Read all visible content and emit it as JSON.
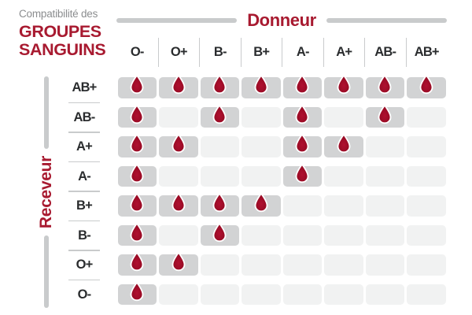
{
  "title": {
    "eyebrow": "Compatibilité des",
    "main_line1": "GROUPES",
    "main_line2": "SANGUINS"
  },
  "donor_axis_label": "Donneur",
  "receiver_axis_label": "Receveur",
  "chart_data": {
    "type": "heatmap",
    "title": "Compatibilité des groupes sanguins",
    "x_axis_label": "Donneur",
    "y_axis_label": "Receveur",
    "donors": [
      "O-",
      "O+",
      "B-",
      "B+",
      "A-",
      "A+",
      "AB-",
      "AB+"
    ],
    "receivers": [
      "AB+",
      "AB-",
      "A+",
      "A-",
      "B+",
      "B-",
      "O+",
      "O-"
    ],
    "compatible_marker": "blood-drop-icon",
    "matrix": [
      [
        1,
        1,
        1,
        1,
        1,
        1,
        1,
        1
      ],
      [
        1,
        0,
        1,
        0,
        1,
        0,
        1,
        0
      ],
      [
        1,
        1,
        0,
        0,
        1,
        1,
        0,
        0
      ],
      [
        1,
        0,
        0,
        0,
        1,
        0,
        0,
        0
      ],
      [
        1,
        1,
        1,
        1,
        0,
        0,
        0,
        0
      ],
      [
        1,
        0,
        1,
        0,
        0,
        0,
        0,
        0
      ],
      [
        1,
        1,
        0,
        0,
        0,
        0,
        0,
        0
      ],
      [
        1,
        0,
        0,
        0,
        0,
        0,
        0,
        0
      ]
    ]
  },
  "colors": {
    "accent_red": "#a81a30",
    "drop_red": "#b01030",
    "drop_red_dark": "#8e091f",
    "drop_stroke": "#ffffff",
    "cell_filled_bg": "#d2d3d4",
    "cell_empty_bg": "#f1f2f2",
    "separator_gray": "#c9cbcc",
    "eyebrow_gray": "#8b8d8f",
    "label_dark": "#2a2c2e"
  }
}
